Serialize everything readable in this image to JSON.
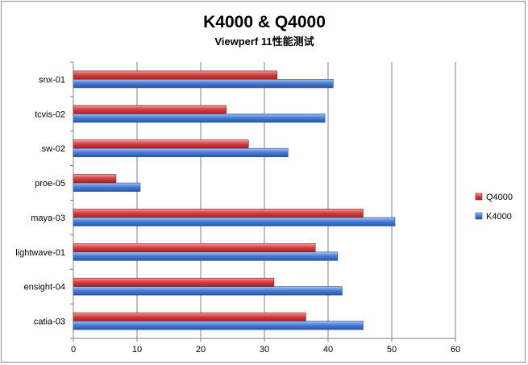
{
  "chart_data": {
    "type": "bar",
    "orientation": "horizontal",
    "title": "K4000 & Q4000",
    "subtitle": "Viewperf 11性能测试",
    "categories": [
      "snx-01",
      "tcvis-02",
      "sw-02",
      "proe-05",
      "maya-03",
      "lightwave-01",
      "ensight-04",
      "catia-03"
    ],
    "series": [
      {
        "name": "Q4000",
        "color": "#cc3333",
        "values": [
          32,
          24,
          27.5,
          6.7,
          45.5,
          38,
          31.5,
          36.5
        ]
      },
      {
        "name": "K4000",
        "color": "#3366cc",
        "values": [
          40.8,
          39.5,
          33.7,
          10.5,
          50.5,
          41.5,
          42.2,
          45.5
        ]
      }
    ],
    "xlim": [
      0,
      60
    ],
    "xticks": [
      0,
      10,
      20,
      30,
      40,
      50,
      60
    ],
    "grid": true,
    "legend_position": "right"
  }
}
